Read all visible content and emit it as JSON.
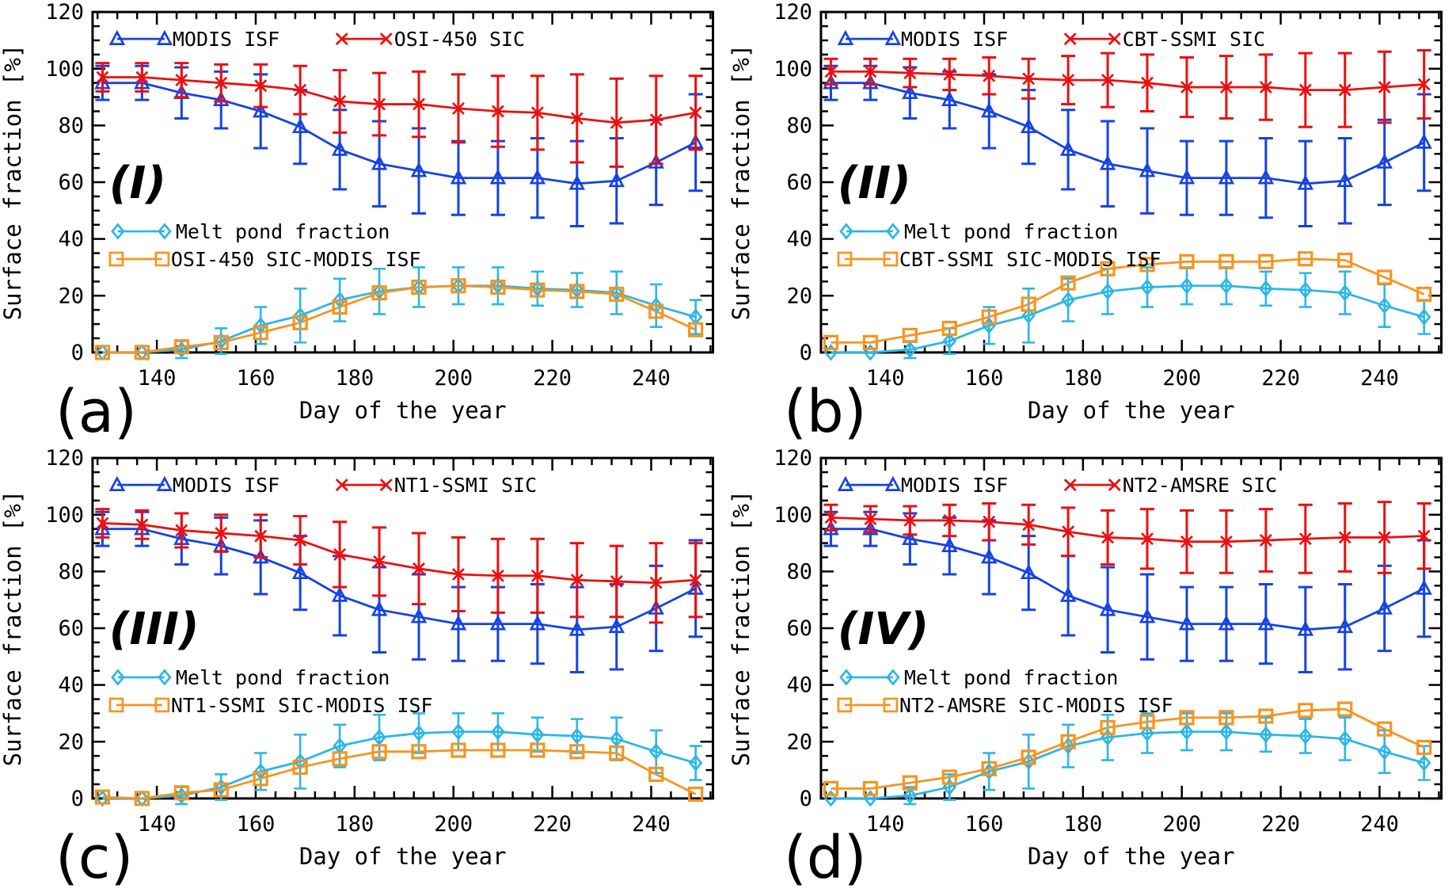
{
  "figure_title": "",
  "colors": {
    "modis_blue": "#1542e6",
    "sic_red": "#ec0f0f",
    "melt_cyan": "#2cb6e8",
    "diff_orange": "#f7941e",
    "axis_black": "#000000",
    "background": "#ffffff"
  },
  "chart_data": [
    {
      "type": "line",
      "panel_letter": "(a)",
      "panel_numeral": "(I)",
      "xlabel": "Day of the year",
      "ylabel": "Surface fraction [%]",
      "xlim": [
        127,
        252.5
      ],
      "ylim": [
        0,
        120
      ],
      "x_ticks": [
        140,
        160,
        180,
        200,
        220,
        240
      ],
      "y_ticks": [
        0,
        20,
        40,
        60,
        80,
        100,
        120
      ],
      "x_minor_step": 4,
      "y_minor_step": 5,
      "grid": false,
      "legend_position": "inside top-left and middle-left",
      "x": [
        129,
        137,
        145,
        153,
        161,
        169,
        177,
        185,
        193,
        201,
        209,
        217,
        225,
        233,
        241,
        249
      ],
      "series": [
        {
          "name": "MODIS ISF",
          "marker": "triangle",
          "color": "#1542e6",
          "values": [
            95,
            95,
            91.5,
            89,
            85,
            79.5,
            71.5,
            66.5,
            64,
            61.5,
            61.5,
            61.5,
            59.5,
            60.5,
            67,
            74
          ],
          "err": [
            6,
            6,
            9,
            10,
            13,
            13,
            14,
            15,
            15,
            13,
            13,
            14,
            15,
            15,
            15,
            17
          ]
        },
        {
          "name": "OSI-450 SIC",
          "marker": "x",
          "color": "#ec0f0f",
          "values": [
            97,
            97,
            96,
            95,
            94,
            92.5,
            88.5,
            87.5,
            87.5,
            86,
            85,
            84.5,
            82.5,
            81,
            82,
            84.5
          ],
          "err": [
            5,
            5,
            6,
            6.5,
            7.5,
            8.5,
            11,
            11,
            11.5,
            12,
            12.5,
            13,
            15.5,
            15.5,
            15.5,
            13
          ]
        },
        {
          "name": "Melt pond fraction",
          "marker": "diamond",
          "color": "#2cb6e8",
          "values": [
            0,
            0,
            1,
            4,
            9.5,
            13,
            18.5,
            21.5,
            23,
            23.5,
            23.5,
            22.5,
            22,
            21,
            16.5,
            12.5
          ],
          "err": [
            0,
            0,
            3,
            4.5,
            6.5,
            9.5,
            7.5,
            8,
            7,
            6.5,
            6.5,
            6,
            6,
            7.5,
            7.5,
            6
          ]
        },
        {
          "name": "OSI-450 SIC-MODIS ISF",
          "marker": "square",
          "color": "#f7941e",
          "values": [
            0,
            0,
            2,
            3.5,
            7,
            10.5,
            16,
            21,
            23,
            23.5,
            23,
            22,
            21.5,
            20.5,
            14.5,
            8
          ]
        }
      ]
    },
    {
      "type": "line",
      "panel_letter": "(b)",
      "panel_numeral": "(II)",
      "xlabel": "Day of the year",
      "ylabel": "Surface fraction [%]",
      "xlim": [
        127,
        252.5
      ],
      "ylim": [
        0,
        120
      ],
      "x_ticks": [
        140,
        160,
        180,
        200,
        220,
        240
      ],
      "y_ticks": [
        0,
        20,
        40,
        60,
        80,
        100,
        120
      ],
      "x_minor_step": 4,
      "y_minor_step": 5,
      "grid": false,
      "legend_position": "inside top-left and middle-left",
      "x": [
        129,
        137,
        145,
        153,
        161,
        169,
        177,
        185,
        193,
        201,
        209,
        217,
        225,
        233,
        241,
        249
      ],
      "series": [
        {
          "name": "MODIS ISF",
          "marker": "triangle",
          "color": "#1542e6",
          "values": [
            95,
            95,
            91.5,
            89,
            85,
            79.5,
            71.5,
            66.5,
            64,
            61.5,
            61.5,
            61.5,
            59.5,
            60.5,
            67,
            74
          ],
          "err": [
            6,
            6,
            9,
            10,
            13,
            13,
            14,
            15,
            15,
            13,
            13,
            14,
            15,
            15,
            15,
            17
          ]
        },
        {
          "name": "CBT-SSMI SIC",
          "marker": "x",
          "color": "#ec0f0f",
          "values": [
            99,
            99,
            98.5,
            98,
            97.5,
            96.5,
            96,
            96,
            95,
            93.5,
            93.5,
            93.5,
            92.5,
            92.5,
            93.5,
            94.5
          ],
          "err": [
            4.5,
            4.5,
            5,
            5.5,
            6.5,
            7,
            8.5,
            9.5,
            10,
            10.5,
            11,
            11.5,
            13,
            13,
            12.5,
            12
          ]
        },
        {
          "name": "Melt pond fraction",
          "marker": "diamond",
          "color": "#2cb6e8",
          "values": [
            0,
            0,
            1,
            4,
            9.5,
            13,
            18.5,
            21.5,
            23,
            23.5,
            23.5,
            22.5,
            22,
            21,
            16.5,
            12.5
          ],
          "err": [
            0,
            0,
            3,
            4.5,
            6.5,
            9.5,
            7.5,
            8,
            7,
            6.5,
            6.5,
            6,
            6,
            7.5,
            7.5,
            6
          ]
        },
        {
          "name": "CBT-SSMI SIC-MODIS ISF",
          "marker": "square",
          "color": "#f7941e",
          "values": [
            3.5,
            3.5,
            6,
            8.5,
            12.5,
            17,
            24.5,
            29.5,
            31,
            32,
            32,
            32,
            33,
            32.5,
            26.5,
            20.5
          ]
        }
      ]
    },
    {
      "type": "line",
      "panel_letter": "(c)",
      "panel_numeral": "(III)",
      "xlabel": "Day of the year",
      "ylabel": "Surface fraction [%]",
      "xlim": [
        127,
        252.5
      ],
      "ylim": [
        0,
        120
      ],
      "x_ticks": [
        140,
        160,
        180,
        200,
        220,
        240
      ],
      "y_ticks": [
        0,
        20,
        40,
        60,
        80,
        100,
        120
      ],
      "x_minor_step": 4,
      "y_minor_step": 5,
      "grid": false,
      "legend_position": "inside top-left and middle-left",
      "x": [
        129,
        137,
        145,
        153,
        161,
        169,
        177,
        185,
        193,
        201,
        209,
        217,
        225,
        233,
        241,
        249
      ],
      "series": [
        {
          "name": "MODIS ISF",
          "marker": "triangle",
          "color": "#1542e6",
          "values": [
            95,
            95,
            91.5,
            89,
            85,
            79.5,
            71.5,
            66.5,
            64,
            61.5,
            61.5,
            61.5,
            59.5,
            60.5,
            67,
            74
          ],
          "err": [
            6,
            6,
            9,
            10,
            13,
            13,
            14,
            15,
            15,
            13,
            13,
            14,
            15,
            15,
            15,
            17
          ]
        },
        {
          "name": "NT1-SSMI SIC",
          "marker": "x",
          "color": "#ec0f0f",
          "values": [
            97,
            96.5,
            94.5,
            93.5,
            92.5,
            91,
            86,
            83.5,
            81,
            79,
            78.5,
            78.5,
            77,
            76.5,
            76,
            77
          ],
          "err": [
            5,
            5,
            6,
            6.5,
            7.5,
            8.5,
            11.5,
            12,
            12.5,
            13,
            13,
            13,
            13,
            12.5,
            14,
            13
          ]
        },
        {
          "name": "Melt pond fraction",
          "marker": "diamond",
          "color": "#2cb6e8",
          "values": [
            0,
            0,
            1,
            4,
            9.5,
            13,
            18.5,
            21.5,
            23,
            23.5,
            23.5,
            22.5,
            22,
            21,
            16.5,
            12.5
          ],
          "err": [
            0,
            0,
            3,
            4.5,
            6.5,
            9.5,
            7.5,
            8,
            7,
            6.5,
            6.5,
            6,
            6,
            7.5,
            7.5,
            6
          ]
        },
        {
          "name": "NT1-SSMI SIC-MODIS ISF",
          "marker": "square",
          "color": "#f7941e",
          "values": [
            0.5,
            0,
            2,
            3,
            7,
            11,
            14,
            16.5,
            16.5,
            17,
            17,
            17,
            16.5,
            16,
            8.5,
            1.5
          ]
        }
      ]
    },
    {
      "type": "line",
      "panel_letter": "(d)",
      "panel_numeral": "(IV)",
      "xlabel": "Day of the year",
      "ylabel": "Surface fraction [%]",
      "xlim": [
        127,
        252.5
      ],
      "ylim": [
        0,
        120
      ],
      "x_ticks": [
        140,
        160,
        180,
        200,
        220,
        240
      ],
      "y_ticks": [
        0,
        20,
        40,
        60,
        80,
        100,
        120
      ],
      "x_minor_step": 4,
      "y_minor_step": 5,
      "grid": false,
      "legend_position": "inside top-left and middle-left",
      "x": [
        129,
        137,
        145,
        153,
        161,
        169,
        177,
        185,
        193,
        201,
        209,
        217,
        225,
        233,
        241,
        249
      ],
      "series": [
        {
          "name": "MODIS ISF",
          "marker": "triangle",
          "color": "#1542e6",
          "values": [
            95,
            95,
            91.5,
            89,
            85,
            79.5,
            71.5,
            66.5,
            64,
            61.5,
            61.5,
            61.5,
            59.5,
            60.5,
            67,
            74
          ],
          "err": [
            6,
            6,
            9,
            10,
            13,
            13,
            14,
            15,
            15,
            13,
            13,
            14,
            15,
            15,
            15,
            17
          ]
        },
        {
          "name": "NT2-AMSRE SIC",
          "marker": "x",
          "color": "#ec0f0f",
          "values": [
            99,
            98.5,
            98,
            98,
            97.5,
            96.5,
            94,
            92,
            91.5,
            90.5,
            90.5,
            91,
            91.5,
            92,
            92,
            92.5
          ],
          "err": [
            4.5,
            4.5,
            5,
            5.5,
            6.5,
            7,
            8.5,
            9.5,
            10.5,
            11,
            11,
            11,
            12,
            12,
            12.5,
            11.5
          ]
        },
        {
          "name": "Melt pond fraction",
          "marker": "diamond",
          "color": "#2cb6e8",
          "values": [
            0,
            0,
            1,
            4,
            9.5,
            13,
            18.5,
            21.5,
            23,
            23.5,
            23.5,
            22.5,
            22,
            21,
            16.5,
            12.5
          ],
          "err": [
            0,
            0,
            3,
            4.5,
            6.5,
            9.5,
            7.5,
            8,
            7,
            6.5,
            6.5,
            6,
            6,
            7.5,
            7.5,
            6
          ]
        },
        {
          "name": "NT2-AMSRE SIC-MODIS ISF",
          "marker": "square",
          "color": "#f7941e",
          "values": [
            3.5,
            3.5,
            5.5,
            7.5,
            10.5,
            14.5,
            20,
            25,
            27,
            28.5,
            28.5,
            29,
            31,
            31.5,
            24.5,
            18
          ]
        }
      ]
    }
  ]
}
